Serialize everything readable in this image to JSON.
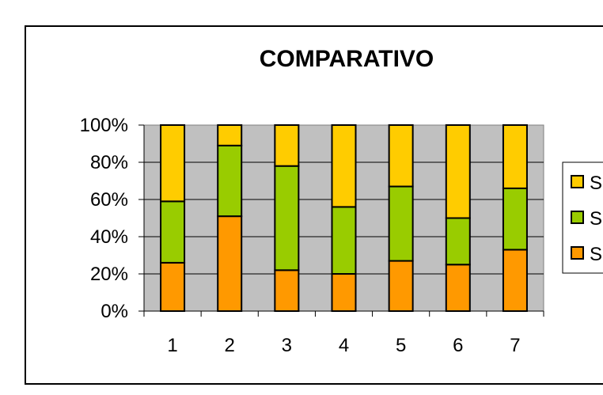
{
  "chart_data": {
    "type": "bar",
    "stacked": "percent",
    "title": "COMPARATIVO",
    "categories": [
      "1",
      "2",
      "3",
      "4",
      "5",
      "6",
      "7"
    ],
    "y_tick_labels": [
      "0%",
      "20%",
      "40%",
      "60%",
      "80%",
      "100%"
    ],
    "ylim": [
      0,
      100
    ],
    "grid": true,
    "legend_position": "right",
    "series": [
      {
        "name": "S",
        "color": "#ff9900",
        "values": [
          26,
          51,
          22,
          20,
          27,
          25,
          33
        ]
      },
      {
        "name": "S",
        "color": "#99cc00",
        "values": [
          33,
          38,
          56,
          36,
          40,
          25,
          33
        ]
      },
      {
        "name": "S",
        "color": "#ffcc00",
        "values": [
          41,
          11,
          22,
          44,
          33,
          50,
          34
        ]
      }
    ],
    "legend_order": [
      2,
      1,
      0
    ],
    "colors": {
      "plot_background": "#c0c0c0",
      "outline": "#000000",
      "background": "#ffffff"
    }
  }
}
